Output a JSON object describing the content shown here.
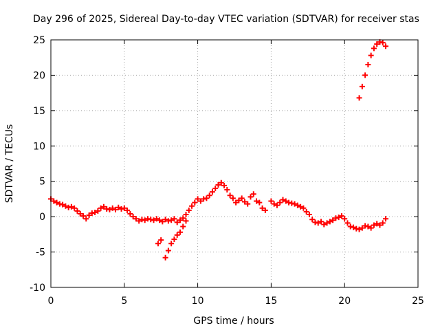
{
  "chart_data": {
    "type": "scatter",
    "title": "Day 296 of 2025, Sidereal Day-to-day VTEC variation (SDTVAR) for receiver stas",
    "xlabel": "GPS time / hours",
    "ylabel": "SDTVAR / TECUs",
    "xlim": [
      0,
      25
    ],
    "ylim": [
      -10,
      25
    ],
    "xticks": [
      0,
      5,
      10,
      15,
      20,
      25
    ],
    "yticks": [
      -10,
      -5,
      0,
      5,
      10,
      15,
      20,
      25
    ],
    "x_tick_labels": [
      "0",
      "5",
      "10",
      "15",
      "20",
      "25"
    ],
    "y_tick_labels": [
      "-10",
      "-5",
      "0",
      "5",
      "10",
      "15",
      "20",
      "25"
    ],
    "grid": true,
    "marker": "+",
    "series": [
      {
        "name": "SDTVAR",
        "color": "#ff0000",
        "points": [
          [
            0.0,
            2.5
          ],
          [
            0.2,
            2.2
          ],
          [
            0.4,
            2.0
          ],
          [
            0.6,
            1.8
          ],
          [
            0.8,
            1.7
          ],
          [
            1.0,
            1.5
          ],
          [
            1.2,
            1.3
          ],
          [
            1.4,
            1.4
          ],
          [
            1.6,
            1.2
          ],
          [
            1.8,
            0.8
          ],
          [
            2.0,
            0.4
          ],
          [
            2.2,
            0.1
          ],
          [
            2.4,
            -0.3
          ],
          [
            2.6,
            0.2
          ],
          [
            2.8,
            0.5
          ],
          [
            3.0,
            0.6
          ],
          [
            3.2,
            0.8
          ],
          [
            3.4,
            1.2
          ],
          [
            3.6,
            1.4
          ],
          [
            3.8,
            1.1
          ],
          [
            4.0,
            1.0
          ],
          [
            4.2,
            1.2
          ],
          [
            4.4,
            1.0
          ],
          [
            4.6,
            1.3
          ],
          [
            4.8,
            1.1
          ],
          [
            5.0,
            1.2
          ],
          [
            5.2,
            0.9
          ],
          [
            5.4,
            0.4
          ],
          [
            5.6,
            0.0
          ],
          [
            5.8,
            -0.3
          ],
          [
            6.0,
            -0.6
          ],
          [
            6.2,
            -0.4
          ],
          [
            6.4,
            -0.5
          ],
          [
            6.6,
            -0.3
          ],
          [
            6.8,
            -0.4
          ],
          [
            7.0,
            -0.5
          ],
          [
            7.2,
            -0.3
          ],
          [
            7.4,
            -0.5
          ],
          [
            7.6,
            -0.7
          ],
          [
            7.8,
            -0.4
          ],
          [
            8.0,
            -0.6
          ],
          [
            8.2,
            -0.5
          ],
          [
            8.4,
            -0.3
          ],
          [
            8.6,
            -0.8
          ],
          [
            8.8,
            -0.5
          ],
          [
            9.0,
            -0.2
          ],
          [
            9.2,
            0.3
          ],
          [
            9.4,
            0.9
          ],
          [
            9.6,
            1.5
          ],
          [
            9.8,
            2.0
          ],
          [
            10.0,
            2.5
          ],
          [
            10.2,
            2.2
          ],
          [
            10.4,
            2.5
          ],
          [
            10.6,
            2.6
          ],
          [
            10.8,
            3.0
          ],
          [
            11.0,
            3.5
          ],
          [
            11.2,
            4.0
          ],
          [
            11.4,
            4.5
          ],
          [
            11.6,
            4.8
          ],
          [
            11.8,
            4.4
          ],
          [
            12.0,
            3.8
          ],
          [
            12.2,
            3.0
          ],
          [
            12.4,
            2.6
          ],
          [
            12.6,
            2.0
          ],
          [
            12.8,
            2.3
          ],
          [
            13.0,
            2.6
          ],
          [
            13.2,
            2.1
          ],
          [
            13.4,
            1.8
          ],
          [
            13.6,
            2.8
          ],
          [
            13.8,
            3.2
          ],
          [
            14.0,
            2.2
          ],
          [
            14.2,
            2.0
          ],
          [
            14.4,
            1.2
          ],
          [
            14.6,
            0.9
          ],
          [
            15.0,
            2.2
          ],
          [
            15.2,
            1.8
          ],
          [
            15.4,
            1.6
          ],
          [
            15.6,
            2.0
          ],
          [
            15.8,
            2.4
          ],
          [
            16.0,
            2.2
          ],
          [
            16.2,
            2.0
          ],
          [
            16.4,
            1.9
          ],
          [
            16.6,
            1.8
          ],
          [
            16.8,
            1.6
          ],
          [
            17.0,
            1.4
          ],
          [
            17.2,
            1.2
          ],
          [
            17.4,
            0.7
          ],
          [
            17.6,
            0.3
          ],
          [
            17.8,
            -0.4
          ],
          [
            18.0,
            -0.8
          ],
          [
            18.2,
            -0.9
          ],
          [
            18.4,
            -0.7
          ],
          [
            18.6,
            -1.1
          ],
          [
            18.8,
            -0.9
          ],
          [
            19.0,
            -0.7
          ],
          [
            19.2,
            -0.5
          ],
          [
            19.4,
            -0.2
          ],
          [
            19.6,
            -0.1
          ],
          [
            19.8,
            0.1
          ],
          [
            20.0,
            -0.3
          ],
          [
            20.2,
            -0.9
          ],
          [
            20.4,
            -1.4
          ],
          [
            20.6,
            -1.5
          ],
          [
            20.8,
            -1.7
          ],
          [
            21.0,
            -1.8
          ],
          [
            21.2,
            -1.6
          ],
          [
            21.4,
            -1.3
          ],
          [
            21.6,
            -1.4
          ],
          [
            21.8,
            -1.6
          ],
          [
            22.0,
            -1.2
          ],
          [
            22.2,
            -1.0
          ],
          [
            22.4,
            -1.2
          ],
          [
            22.6,
            -0.9
          ],
          [
            22.8,
            -0.3
          ],
          [
            7.3,
            -3.8
          ],
          [
            7.5,
            -3.3
          ],
          [
            7.8,
            -5.8
          ],
          [
            8.0,
            -4.8
          ],
          [
            8.2,
            -3.8
          ],
          [
            8.4,
            -3.2
          ],
          [
            8.6,
            -2.6
          ],
          [
            8.8,
            -2.2
          ],
          [
            9.0,
            -1.4
          ],
          [
            9.2,
            -0.6
          ],
          [
            21.0,
            16.8
          ],
          [
            21.2,
            18.4
          ],
          [
            21.4,
            20.0
          ],
          [
            21.6,
            21.5
          ],
          [
            21.8,
            22.8
          ],
          [
            22.0,
            23.8
          ],
          [
            22.2,
            24.4
          ],
          [
            22.4,
            24.7
          ],
          [
            22.6,
            24.6
          ],
          [
            22.8,
            24.1
          ]
        ]
      }
    ]
  }
}
